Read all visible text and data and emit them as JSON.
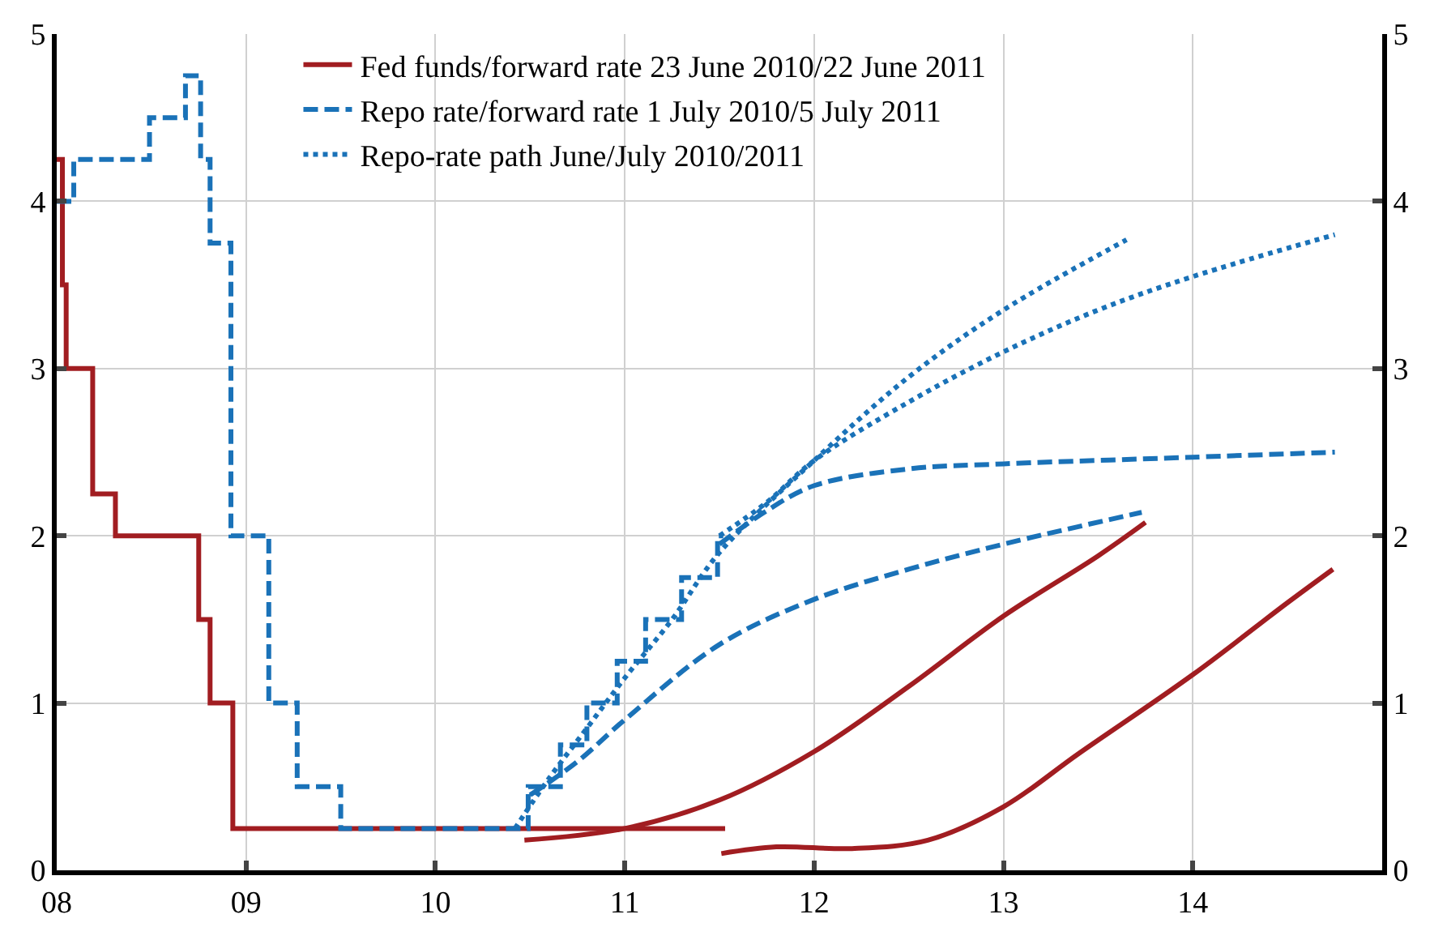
{
  "chart_data": {
    "type": "line",
    "xlim": [
      2008,
      2015
    ],
    "xticks": [
      {
        "value": 2008,
        "label": "08"
      },
      {
        "value": 2009,
        "label": "09"
      },
      {
        "value": 2010,
        "label": "10"
      },
      {
        "value": 2011,
        "label": "11"
      },
      {
        "value": 2012,
        "label": "12"
      },
      {
        "value": 2013,
        "label": "13"
      },
      {
        "value": 2014,
        "label": "14"
      }
    ],
    "ylim": [
      0,
      5
    ],
    "yticks": [
      0,
      1,
      2,
      3,
      4,
      5
    ],
    "y2lim": [
      0,
      5
    ],
    "y2ticks": [
      0,
      1,
      2,
      3,
      4,
      5
    ],
    "grid": true,
    "legend": "top",
    "series": [
      {
        "name": "Fed funds/forward rate 23 June 2010/22 June 2011",
        "type": "step",
        "color": "#a11d21",
        "line_style": "solid",
        "x": [
          2008.0,
          2008.03,
          2008.05,
          2008.19,
          2008.31,
          2008.75,
          2008.81,
          2008.93,
          2011.53
        ],
        "values": [
          4.25,
          3.5,
          3.0,
          2.25,
          2.0,
          1.5,
          1.0,
          0.25,
          0.25
        ]
      },
      {
        "color": "#a11d21",
        "line_style": "solid",
        "x": [
          2010.47,
          2011.0,
          2011.5,
          2012.0,
          2012.5,
          2013.0,
          2013.5,
          2013.75
        ],
        "values": [
          0.18,
          0.25,
          0.42,
          0.71,
          1.1,
          1.52,
          1.88,
          2.08
        ]
      },
      {
        "color": "#a11d21",
        "line_style": "solid",
        "x": [
          2011.51,
          2011.8,
          2012.2,
          2012.6,
          2013.0,
          2013.4,
          2014.0,
          2014.5,
          2014.74
        ],
        "values": [
          0.1,
          0.14,
          0.13,
          0.18,
          0.38,
          0.7,
          1.17,
          1.6,
          1.8
        ]
      },
      {
        "name": "Repo rate/forward rate 1 July 2010/5 July 2011",
        "type": "step",
        "color": "#1a72b8",
        "line_style": "dashed",
        "x": [
          2008.0,
          2008.09,
          2008.49,
          2008.68,
          2008.76,
          2008.81,
          2008.92,
          2009.12,
          2009.27,
          2009.5,
          2010.49,
          2010.66,
          2010.8,
          2010.96,
          2011.11,
          2011.3,
          2011.49,
          2011.52
        ],
        "values": [
          4.0,
          4.25,
          4.5,
          4.75,
          4.25,
          3.75,
          2.0,
          1.0,
          0.5,
          0.25,
          0.5,
          0.75,
          1.0,
          1.25,
          1.5,
          1.75,
          2.0,
          2.0
        ]
      },
      {
        "color": "#1a72b8",
        "line_style": "dashed",
        "x": [
          2010.5,
          2010.75,
          2011.0,
          2011.5,
          2012.0,
          2012.5,
          2013.0,
          2013.73
        ],
        "values": [
          0.45,
          0.65,
          0.9,
          1.35,
          1.62,
          1.8,
          1.95,
          2.14
        ]
      },
      {
        "color": "#1a72b8",
        "line_style": "dashed",
        "x": [
          2011.5,
          2011.75,
          2012.0,
          2012.5,
          2013.0,
          2014.0,
          2014.75
        ],
        "values": [
          1.95,
          2.15,
          2.3,
          2.4,
          2.43,
          2.47,
          2.5
        ]
      },
      {
        "name": "Repo-rate path June/July 2010/2011",
        "color": "#1a72b8",
        "line_style": "dotted",
        "x": [
          2010.42,
          2010.6,
          2010.8,
          2011.0,
          2011.25,
          2011.5,
          2012.0,
          2012.5,
          2013.0,
          2013.65
        ],
        "values": [
          0.25,
          0.55,
          0.85,
          1.15,
          1.5,
          1.9,
          2.45,
          2.95,
          3.35,
          3.77
        ]
      },
      {
        "color": "#1a72b8",
        "line_style": "dotted",
        "x": [
          2011.5,
          2011.75,
          2012.0,
          2012.5,
          2013.0,
          2013.5,
          2014.0,
          2014.75
        ],
        "values": [
          2.0,
          2.2,
          2.45,
          2.8,
          3.1,
          3.35,
          3.55,
          3.8
        ]
      }
    ]
  }
}
